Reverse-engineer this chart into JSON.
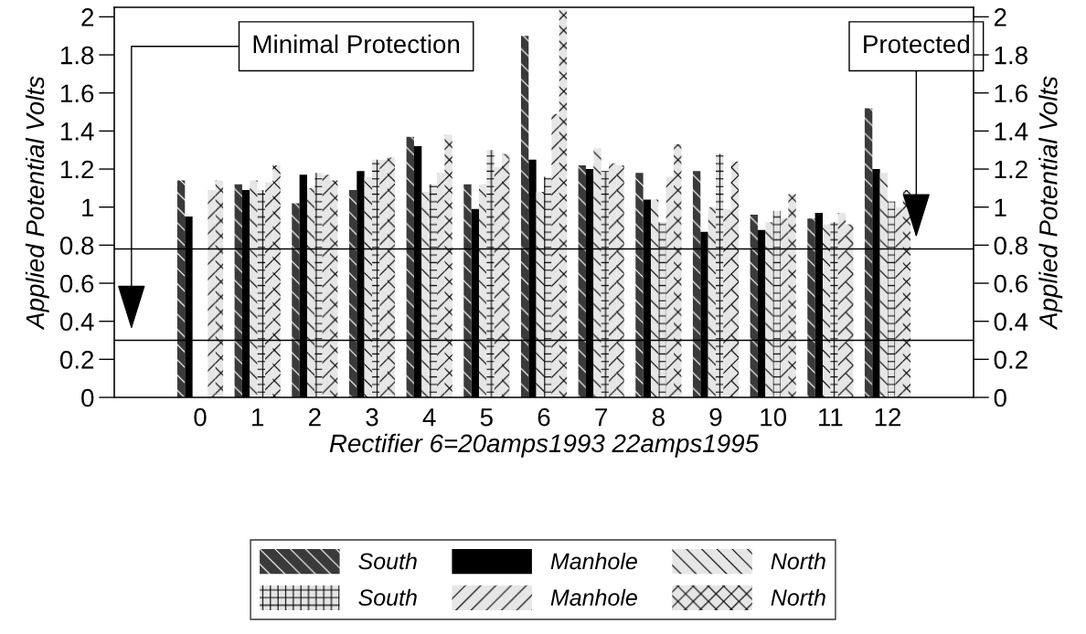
{
  "chart_data": {
    "type": "bar",
    "xlabel": "Rectifier 6=20amps1993 22amps1995",
    "ylabel": "Applied Potential Volts",
    "y2label": "Applied Potential Volts",
    "categories": [
      null,
      "0",
      "1",
      "2",
      "3",
      "4",
      "5",
      "6",
      "7",
      "8",
      "9",
      "10",
      "11",
      "12",
      null
    ],
    "series": [
      {
        "name": "South",
        "color": "#3a3a3a",
        "values": [
          null,
          1.14,
          1.12,
          1.02,
          1.09,
          1.37,
          1.12,
          1.9,
          1.22,
          1.18,
          1.19,
          0.96,
          0.94,
          1.52,
          null
        ]
      },
      {
        "name": "Manhole",
        "color": "#000000",
        "values": [
          null,
          0.95,
          1.09,
          1.17,
          1.19,
          1.32,
          0.99,
          1.25,
          1.2,
          1.04,
          0.87,
          0.88,
          0.97,
          1.2,
          null
        ]
      },
      {
        "name": "North",
        "color": "#e6e6e6",
        "values": [
          null,
          null,
          1.14,
          1.1,
          1.16,
          1.08,
          1.12,
          1.08,
          1.31,
          1.04,
          1.0,
          0.92,
          0.91,
          1.18,
          null
        ]
      },
      {
        "name": "South",
        "color": "#e6e6e6",
        "values": [
          null,
          null,
          1.09,
          1.18,
          1.25,
          1.12,
          1.3,
          1.16,
          1.19,
          0.92,
          1.28,
          0.98,
          0.92,
          1.03,
          null
        ]
      },
      {
        "name": "Manhole",
        "color": "#e6e6e6",
        "values": [
          null,
          1.09,
          1.13,
          1.17,
          1.25,
          1.18,
          1.21,
          1.49,
          1.23,
          1.16,
          0.99,
          0.94,
          0.97,
          1.0,
          null
        ]
      },
      {
        "name": "North",
        "color": "#e6e6e6",
        "values": [
          null,
          1.14,
          1.22,
          1.14,
          1.26,
          1.38,
          1.28,
          2.04,
          1.22,
          1.33,
          1.24,
          1.07,
          0.91,
          1.09,
          null
        ]
      }
    ],
    "ylim": [
      0,
      2.05
    ],
    "yticks": [
      0,
      0.2,
      0.4,
      0.6,
      0.8,
      1,
      1.2,
      1.4,
      1.6,
      1.8,
      2
    ],
    "y2lim": [
      0,
      2.05
    ],
    "y2ticks": [
      0,
      0.2,
      0.4,
      0.6,
      0.8,
      1,
      1.2,
      1.4,
      1.6,
      1.8,
      2
    ],
    "ref_lines": [
      {
        "axis": "y",
        "value": 0.78,
        "color": "#000000"
      },
      {
        "axis": "y",
        "value": 0.3,
        "color": "#000000"
      }
    ],
    "annotations": [
      "Minimal Protection",
      "Protected"
    ],
    "legend": "bottom",
    "grid": false
  }
}
